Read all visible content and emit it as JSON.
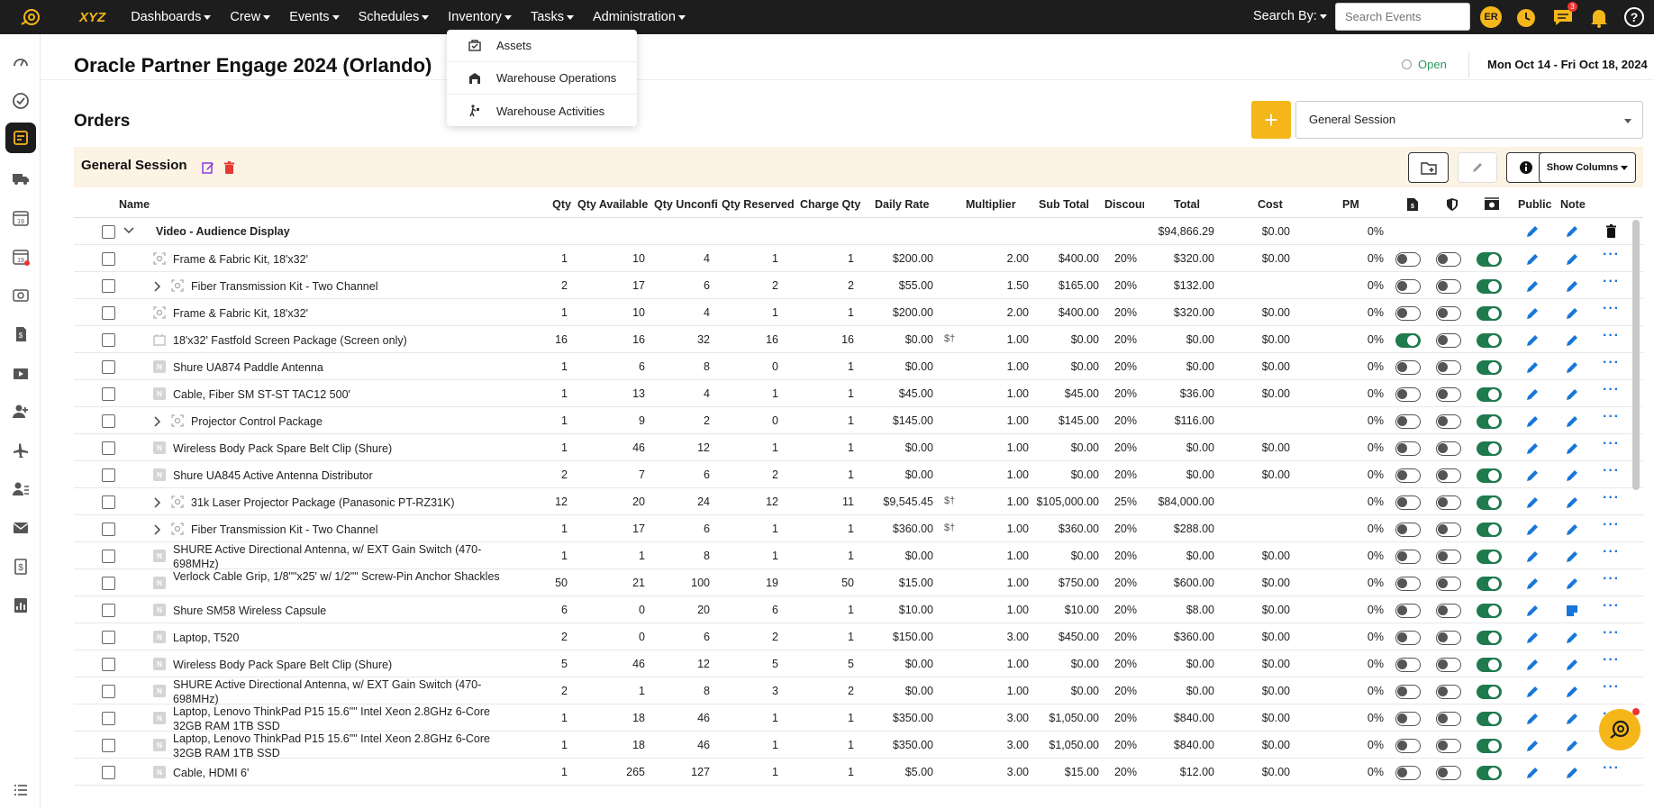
{
  "brand": "XYZ",
  "nav": [
    "Dashboards",
    "Crew",
    "Events",
    "Schedules",
    "Inventory",
    "Tasks",
    "Administration"
  ],
  "search_by": "Search By:",
  "search_placeholder": "Search Events",
  "avatar_initials": "ER",
  "chat_badge": "3",
  "inventory_menu": [
    "Assets",
    "Warehouse Operations",
    "Warehouse Activities"
  ],
  "event": {
    "title": "Oracle Partner Engage 2024 (Orlando)",
    "status": "Open",
    "dates": "Mon Oct 14 - Fri Oct 18, 2024"
  },
  "orders_title": "Orders",
  "add_label": "+",
  "session_select": "General Session",
  "session_title": "General Session",
  "show_columns": "Show Columns",
  "columns": {
    "name": "Name",
    "qty": "Qty",
    "qty_available": "Qty Available",
    "qty_unconfirmed": "Qty Unconfi",
    "qty_reserved": "Qty Reserved",
    "charge_qty": "Charge Qty",
    "daily_rate": "Daily Rate",
    "multiplier": "Multiplier",
    "sub_total": "Sub Total",
    "discount": "Discoun",
    "total": "Total",
    "cost": "Cost",
    "pm": "PM",
    "public": "Public",
    "note": "Note"
  },
  "group": {
    "name": "Video - Audience Display",
    "total": "$94,866.29",
    "cost": "$0.00",
    "pm": "0%"
  },
  "rows": [
    {
      "name": "Frame & Fabric Kit, 18'x32'",
      "icon": "kit",
      "expand": false,
      "qty": "1",
      "avail": "10",
      "unconf": "4",
      "res": "1",
      "charge": "1",
      "rate": "$200.00",
      "dollar": false,
      "mult": "2.00",
      "sub": "$400.00",
      "disc": "20%",
      "total": "$320.00",
      "cost": "$0.00",
      "pm": "0%",
      "t1": "off",
      "t2": "off",
      "t3": "on",
      "note": "pen"
    },
    {
      "name": "Fiber Transmission Kit - Two Channel",
      "icon": "kit",
      "expand": true,
      "qty": "2",
      "avail": "17",
      "unconf": "6",
      "res": "2",
      "charge": "2",
      "rate": "$55.00",
      "dollar": false,
      "mult": "1.50",
      "sub": "$165.00",
      "disc": "20%",
      "total": "$132.00",
      "cost": "",
      "pm": "0%",
      "t1": "off",
      "t2": "off",
      "t3": "on",
      "note": "pen"
    },
    {
      "name": "Frame & Fabric Kit, 18'x32'",
      "icon": "kit",
      "expand": false,
      "qty": "1",
      "avail": "10",
      "unconf": "4",
      "res": "1",
      "charge": "1",
      "rate": "$200.00",
      "dollar": false,
      "mult": "2.00",
      "sub": "$400.00",
      "disc": "20%",
      "total": "$320.00",
      "cost": "$0.00",
      "pm": "0%",
      "t1": "off",
      "t2": "off",
      "t3": "on",
      "note": "pen"
    },
    {
      "name": "18'x32' Fastfold Screen Package (Screen only)",
      "icon": "pkg",
      "expand": false,
      "qty": "16",
      "avail": "16",
      "unconf": "32",
      "res": "16",
      "charge": "16",
      "rate": "$0.00",
      "dollar": true,
      "mult": "1.00",
      "sub": "$0.00",
      "disc": "20%",
      "total": "$0.00",
      "cost": "$0.00",
      "pm": "0%",
      "t1": "on",
      "t2": "off",
      "t3": "on",
      "note": "pen"
    },
    {
      "name": "Shure UA874 Paddle Antenna",
      "icon": "n",
      "expand": false,
      "qty": "1",
      "avail": "6",
      "unconf": "8",
      "res": "0",
      "charge": "1",
      "rate": "$0.00",
      "dollar": false,
      "mult": "1.00",
      "sub": "$0.00",
      "disc": "20%",
      "total": "$0.00",
      "cost": "$0.00",
      "pm": "0%",
      "t1": "off",
      "t2": "off",
      "t3": "on",
      "note": "pen"
    },
    {
      "name": "Cable, Fiber SM ST-ST TAC12 500'",
      "icon": "n",
      "expand": false,
      "qty": "1",
      "avail": "13",
      "unconf": "4",
      "res": "1",
      "charge": "1",
      "rate": "$45.00",
      "dollar": false,
      "mult": "1.00",
      "sub": "$45.00",
      "disc": "20%",
      "total": "$36.00",
      "cost": "$0.00",
      "pm": "0%",
      "t1": "off",
      "t2": "off",
      "t3": "on",
      "note": "pen"
    },
    {
      "name": "Projector Control Package",
      "icon": "kit",
      "expand": true,
      "qty": "1",
      "avail": "9",
      "unconf": "2",
      "res": "0",
      "charge": "1",
      "rate": "$145.00",
      "dollar": false,
      "mult": "1.00",
      "sub": "$145.00",
      "disc": "20%",
      "total": "$116.00",
      "cost": "",
      "pm": "0%",
      "t1": "off",
      "t2": "off",
      "t3": "on",
      "note": "pen"
    },
    {
      "name": "Wireless Body Pack Spare Belt Clip (Shure)",
      "icon": "n",
      "expand": false,
      "qty": "1",
      "avail": "46",
      "unconf": "12",
      "res": "1",
      "charge": "1",
      "rate": "$0.00",
      "dollar": false,
      "mult": "1.00",
      "sub": "$0.00",
      "disc": "20%",
      "total": "$0.00",
      "cost": "$0.00",
      "pm": "0%",
      "t1": "off",
      "t2": "off",
      "t3": "on",
      "note": "pen"
    },
    {
      "name": "Shure UA845 Active Antenna Distributor",
      "icon": "n",
      "expand": false,
      "qty": "2",
      "avail": "7",
      "unconf": "6",
      "res": "2",
      "charge": "1",
      "rate": "$0.00",
      "dollar": false,
      "mult": "1.00",
      "sub": "$0.00",
      "disc": "20%",
      "total": "$0.00",
      "cost": "$0.00",
      "pm": "0%",
      "t1": "off",
      "t2": "off",
      "t3": "on",
      "note": "pen"
    },
    {
      "name": "31k Laser Projector Package (Panasonic PT-RZ31K)",
      "icon": "kit",
      "expand": true,
      "qty": "12",
      "avail": "20",
      "unconf": "24",
      "res": "12",
      "charge": "11",
      "rate": "$9,545.45",
      "dollar": true,
      "mult": "1.00",
      "sub": "$105,000.00",
      "disc": "25%",
      "total": "$84,000.00",
      "cost": "",
      "pm": "0%",
      "t1": "off",
      "t2": "off",
      "t3": "on",
      "note": "pen"
    },
    {
      "name": "Fiber Transmission Kit - Two Channel",
      "icon": "kit",
      "expand": true,
      "qty": "1",
      "avail": "17",
      "unconf": "6",
      "res": "1",
      "charge": "1",
      "rate": "$360.00",
      "dollar": true,
      "mult": "1.00",
      "sub": "$360.00",
      "disc": "20%",
      "total": "$288.00",
      "cost": "",
      "pm": "0%",
      "t1": "off",
      "t2": "off",
      "t3": "on",
      "note": "pen"
    },
    {
      "name": "SHURE Active Directional Antenna, w/ EXT Gain Switch (470-698MHz)",
      "icon": "n",
      "expand": false,
      "qty": "1",
      "avail": "1",
      "unconf": "8",
      "res": "1",
      "charge": "1",
      "rate": "$0.00",
      "dollar": false,
      "mult": "1.00",
      "sub": "$0.00",
      "disc": "20%",
      "total": "$0.00",
      "cost": "$0.00",
      "pm": "0%",
      "t1": "off",
      "t2": "off",
      "t3": "on",
      "note": "pen"
    },
    {
      "name": "Verlock Cable Grip, 1/8\"\"x25' w/ 1/2\"\" Screw-Pin Anchor Shackles",
      "icon": "n",
      "expand": false,
      "qty": "50",
      "avail": "21",
      "unconf": "100",
      "res": "19",
      "charge": "50",
      "rate": "$15.00",
      "dollar": false,
      "mult": "1.00",
      "sub": "$750.00",
      "disc": "20%",
      "total": "$600.00",
      "cost": "$0.00",
      "pm": "0%",
      "t1": "off",
      "t2": "off",
      "t3": "on",
      "note": "pen"
    },
    {
      "name": "Shure SM58 Wireless Capsule",
      "icon": "n",
      "expand": false,
      "qty": "6",
      "avail": "0",
      "unconf": "20",
      "res": "6",
      "charge": "1",
      "rate": "$10.00",
      "dollar": false,
      "mult": "1.00",
      "sub": "$10.00",
      "disc": "20%",
      "total": "$8.00",
      "cost": "$0.00",
      "pm": "0%",
      "t1": "off",
      "t2": "off",
      "t3": "on",
      "note": "sticky"
    },
    {
      "name": "Laptop, T520",
      "icon": "n",
      "expand": false,
      "qty": "2",
      "avail": "0",
      "unconf": "6",
      "res": "2",
      "charge": "1",
      "rate": "$150.00",
      "dollar": false,
      "mult": "3.00",
      "sub": "$450.00",
      "disc": "20%",
      "total": "$360.00",
      "cost": "$0.00",
      "pm": "0%",
      "t1": "off",
      "t2": "off",
      "t3": "on",
      "note": "pen"
    },
    {
      "name": "Wireless Body Pack Spare Belt Clip (Shure)",
      "icon": "n",
      "expand": false,
      "qty": "5",
      "avail": "46",
      "unconf": "12",
      "res": "5",
      "charge": "5",
      "rate": "$0.00",
      "dollar": false,
      "mult": "1.00",
      "sub": "$0.00",
      "disc": "20%",
      "total": "$0.00",
      "cost": "$0.00",
      "pm": "0%",
      "t1": "off",
      "t2": "off",
      "t3": "on",
      "note": "pen"
    },
    {
      "name": "SHURE Active Directional Antenna, w/ EXT Gain Switch (470-698MHz)",
      "icon": "n",
      "expand": false,
      "qty": "2",
      "avail": "1",
      "unconf": "8",
      "res": "3",
      "charge": "2",
      "rate": "$0.00",
      "dollar": false,
      "mult": "1.00",
      "sub": "$0.00",
      "disc": "20%",
      "total": "$0.00",
      "cost": "$0.00",
      "pm": "0%",
      "t1": "off",
      "t2": "off",
      "t3": "on",
      "note": "pen"
    },
    {
      "name": "Laptop, Lenovo ThinkPad P15 15.6\"\" Intel Xeon 2.8GHz 6-Core 32GB RAM 1TB SSD",
      "icon": "n",
      "expand": false,
      "qty": "1",
      "avail": "18",
      "unconf": "46",
      "res": "1",
      "charge": "1",
      "rate": "$350.00",
      "dollar": false,
      "mult": "3.00",
      "sub": "$1,050.00",
      "disc": "20%",
      "total": "$840.00",
      "cost": "$0.00",
      "pm": "0%",
      "t1": "off",
      "t2": "off",
      "t3": "on",
      "note": "pen"
    },
    {
      "name": "Laptop, Lenovo ThinkPad P15 15.6\"\" Intel Xeon 2.8GHz 6-Core 32GB RAM 1TB SSD",
      "icon": "n",
      "expand": false,
      "qty": "1",
      "avail": "18",
      "unconf": "46",
      "res": "1",
      "charge": "1",
      "rate": "$350.00",
      "dollar": false,
      "mult": "3.00",
      "sub": "$1,050.00",
      "disc": "20%",
      "total": "$840.00",
      "cost": "$0.00",
      "pm": "0%",
      "t1": "off",
      "t2": "off",
      "t3": "on",
      "note": "pen"
    },
    {
      "name": "Cable, HDMI 6'",
      "icon": "n",
      "expand": false,
      "qty": "1",
      "avail": "265",
      "unconf": "127",
      "res": "1",
      "charge": "1",
      "rate": "$5.00",
      "dollar": false,
      "mult": "3.00",
      "sub": "$15.00",
      "disc": "20%",
      "total": "$12.00",
      "cost": "$0.00",
      "pm": "0%",
      "t1": "off",
      "t2": "off",
      "t3": "on",
      "note": "pen"
    }
  ],
  "dollar_mark": "$†",
  "n_letter": "N",
  "colors": {
    "accent": "#f5b61a",
    "topbar": "#1d1d1d",
    "link": "#1877d8",
    "toggle_on": "#1f7a4d"
  }
}
